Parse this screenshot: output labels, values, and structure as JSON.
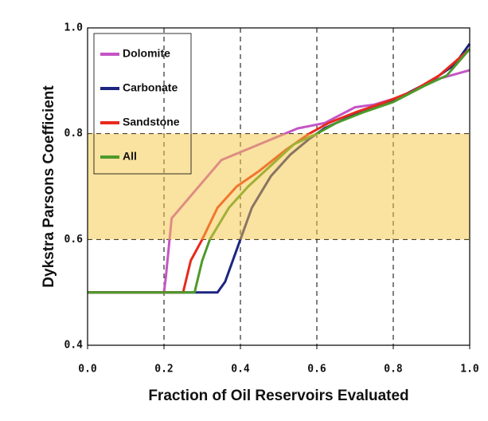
{
  "chart_data": {
    "type": "line",
    "xlabel": "Fraction of Oil Reservoirs Evaluated",
    "ylabel": "Dykstra Parsons Coefficient",
    "xlim": [
      0,
      1
    ],
    "ylim": [
      0.4,
      1
    ],
    "xticks": [
      {
        "value": 0,
        "label": "0.0"
      },
      0.2,
      0.4,
      0.6,
      0.8,
      {
        "value": 1,
        "label": "1.0"
      }
    ],
    "yticks": [
      0.4,
      0.6,
      0.8,
      {
        "value": 1,
        "label": "1.0"
      }
    ],
    "grid": true,
    "shaded_range": [
      0.6,
      0.8
    ],
    "shaded_color": "#f5c542",
    "legend": "upper left",
    "series": [
      {
        "name": "Dolomite",
        "color": "#c455c4",
        "x": [
          0,
          0.2,
          0.205,
          0.22,
          0.35,
          0.45,
          0.55,
          0.62,
          0.7,
          0.75,
          0.82,
          0.9,
          0.95,
          1.0
        ],
        "values": [
          0.5,
          0.5,
          0.53,
          0.64,
          0.75,
          0.78,
          0.81,
          0.82,
          0.85,
          0.855,
          0.87,
          0.9,
          0.91,
          0.92
        ]
      },
      {
        "name": "Carbonate",
        "color": "#1c2580",
        "x": [
          0,
          0.34,
          0.36,
          0.4,
          0.43,
          0.48,
          0.53,
          0.58,
          0.62,
          0.68,
          0.75,
          0.82,
          0.9,
          0.96,
          1.0
        ],
        "values": [
          0.5,
          0.5,
          0.52,
          0.6,
          0.66,
          0.72,
          0.76,
          0.79,
          0.81,
          0.83,
          0.85,
          0.87,
          0.9,
          0.93,
          0.97
        ]
      },
      {
        "name": "Sandstone",
        "color": "#e8291c",
        "x": [
          0,
          0.25,
          0.27,
          0.3,
          0.34,
          0.39,
          0.45,
          0.52,
          0.58,
          0.63,
          0.7,
          0.78,
          0.85,
          0.92,
          1.0
        ],
        "values": [
          0.5,
          0.5,
          0.56,
          0.6,
          0.66,
          0.7,
          0.73,
          0.77,
          0.8,
          0.82,
          0.84,
          0.86,
          0.88,
          0.91,
          0.96
        ]
      },
      {
        "name": "All",
        "color": "#4d9a2a",
        "x": [
          0,
          0.28,
          0.3,
          0.32,
          0.37,
          0.42,
          0.48,
          0.54,
          0.6,
          0.65,
          0.72,
          0.8,
          0.88,
          0.94,
          1.0
        ],
        "values": [
          0.5,
          0.5,
          0.56,
          0.6,
          0.66,
          0.7,
          0.74,
          0.78,
          0.8,
          0.82,
          0.84,
          0.86,
          0.89,
          0.91,
          0.96
        ]
      }
    ]
  }
}
